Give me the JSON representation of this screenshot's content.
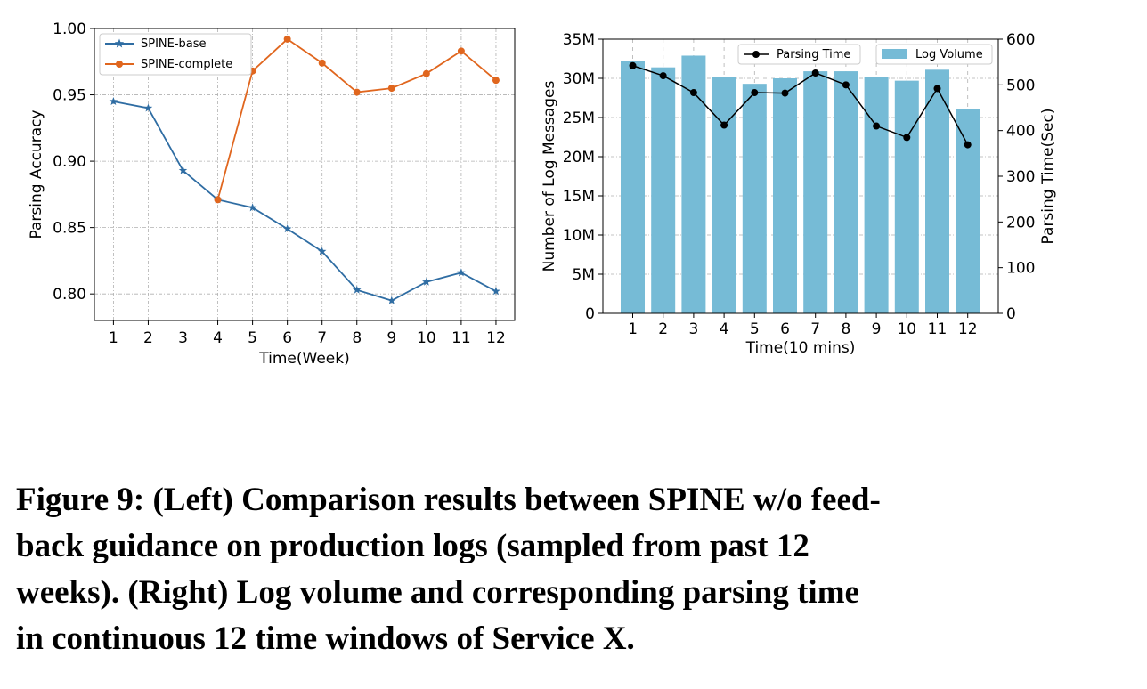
{
  "chart_data": [
    {
      "type": "line",
      "xlabel": "Time(Week)",
      "ylabel": "Parsing Accuracy",
      "x": [
        1,
        2,
        3,
        4,
        5,
        6,
        7,
        8,
        9,
        10,
        11,
        12
      ],
      "xticks": [
        "1",
        "2",
        "3",
        "4",
        "5",
        "6",
        "7",
        "8",
        "9",
        "10",
        "11",
        "12"
      ],
      "ylim": [
        0.78,
        1.0
      ],
      "yticks": [
        "0.80",
        "0.85",
        "0.90",
        "0.95",
        "1.00"
      ],
      "grid": true,
      "legend_position": "top-left",
      "series": [
        {
          "name": "SPINE-base",
          "color": "#2f6da3",
          "marker": "star",
          "values": [
            0.945,
            0.94,
            0.893,
            0.871,
            0.865,
            0.849,
            0.832,
            0.803,
            0.795,
            0.809,
            0.816,
            0.802
          ]
        },
        {
          "name": "SPINE-complete",
          "color": "#e0661e",
          "marker": "circle",
          "values": [
            null,
            null,
            null,
            0.871,
            0.968,
            0.992,
            0.974,
            0.952,
            0.955,
            0.966,
            0.983,
            0.961
          ]
        }
      ]
    },
    {
      "type": "bar",
      "xlabel": "Time(10 mins)",
      "ylabel": "Number of Log Messages",
      "ylabel_right": "Parsing Time(Sec)",
      "categories": [
        "1",
        "2",
        "3",
        "4",
        "5",
        "6",
        "7",
        "8",
        "9",
        "10",
        "11",
        "12"
      ],
      "ylim": [
        0,
        35
      ],
      "yticks": [
        "0",
        "5M",
        "10M",
        "15M",
        "20M",
        "25M",
        "30M",
        "35M"
      ],
      "ylim_right": [
        0,
        600
      ],
      "yticks_right": [
        "0",
        "100",
        "200",
        "300",
        "400",
        "500",
        "600"
      ],
      "grid": true,
      "series": [
        {
          "name": "Log Volume",
          "color": "#76bbd6",
          "axis": "left",
          "unit": "M",
          "values": [
            32.2,
            31.4,
            32.9,
            30.2,
            29.3,
            30.0,
            30.9,
            30.9,
            30.2,
            29.7,
            31.1,
            26.1
          ]
        },
        {
          "name": "Parsing Time",
          "color": "#000000",
          "axis": "right",
          "marker": "circle",
          "values": [
            542,
            520,
            483,
            412,
            483,
            482,
            526,
            500,
            410,
            385,
            492,
            369
          ]
        }
      ]
    }
  ],
  "caption": {
    "lines": [
      "Figure 9: (Left) Comparison results between SPINE w/o feed-",
      "back guidance on production logs (sampled from past 12",
      "weeks). (Right) Log volume and corresponding parsing time",
      "in continuous 12 time windows of Service X."
    ]
  }
}
